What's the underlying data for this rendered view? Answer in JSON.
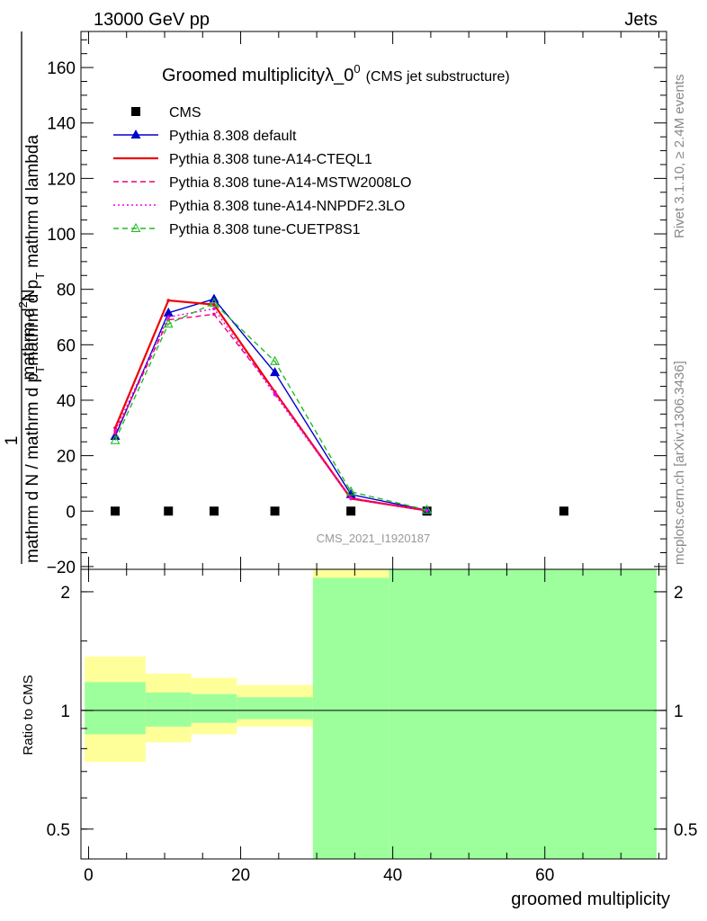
{
  "header": {
    "left": "13000 GeV pp",
    "right": "Jets",
    "side_upper": "Rivet 3.1.10, ≥ 2.4M events",
    "side_lower": "mcplots.cern.ch [arXiv:1306.3436]"
  },
  "chart_data": [
    {
      "type": "line",
      "title": "Groomed multiplicityλ_0",
      "title_sup": "0",
      "subtitle": "(CMS jet substructure)",
      "watermark": "CMS_2021_I1920187",
      "ylabel_numerator": "1",
      "ylabel_denominator_parts": [
        "mathrm d N / mathrm d p",
        "T",
        "mathrm d p",
        "T",
        "mathrm d lambda"
      ],
      "ylabel_numerator_parts": [
        "mathrm d",
        "2",
        "N"
      ],
      "xlim": [
        -1,
        76
      ],
      "ylim": [
        -21,
        173
      ],
      "yticks": [
        -20,
        0,
        20,
        40,
        60,
        80,
        100,
        120,
        140,
        160
      ],
      "xticks": [
        0,
        20,
        40,
        60
      ],
      "grid": false,
      "legend_position": "top-left",
      "series": [
        {
          "name": "CMS",
          "color": "#000000",
          "marker": "square",
          "line": "none",
          "x": [
            3.5,
            10.5,
            16.5,
            24.5,
            34.5,
            44.5,
            62.5
          ],
          "y": [
            0,
            0,
            0,
            0,
            0,
            0,
            0
          ]
        },
        {
          "name": "Pythia 8.308 default",
          "color": "#0000cc",
          "marker": "filled-triangle",
          "line": "solid",
          "x": [
            3.5,
            10.5,
            16.5,
            24.5,
            34.5,
            44.5
          ],
          "y": [
            27,
            71.5,
            76.5,
            50,
            6,
            0.3
          ]
        },
        {
          "name": "Pythia 8.308 tune-A14-CTEQL1",
          "color": "#ee0000",
          "marker": "dot",
          "line": "solid-thick",
          "x": [
            3.5,
            10.5,
            16.5,
            24.5,
            34.5,
            44.5
          ],
          "y": [
            30,
            76,
            74.5,
            43,
            4.5,
            0.2
          ]
        },
        {
          "name": "Pythia 8.308 tune-A14-MSTW2008LO",
          "color": "#ee0077",
          "marker": "dot",
          "line": "dashed",
          "x": [
            3.5,
            10.5,
            16.5,
            24.5,
            34.5,
            44.5
          ],
          "y": [
            28,
            69,
            71,
            43,
            4.8,
            0.2
          ]
        },
        {
          "name": "Pythia 8.308 tune-A14-NNPDF2.3LO",
          "color": "#ee00ee",
          "marker": "dot",
          "line": "dotted",
          "x": [
            3.5,
            10.5,
            16.5,
            24.5,
            34.5,
            44.5
          ],
          "y": [
            29,
            70,
            73,
            42,
            4.5,
            0.2
          ]
        },
        {
          "name": "Pythia 8.308 tune-CUETP8S1",
          "color": "#22bb22",
          "marker": "open-triangle",
          "line": "dashed",
          "x": [
            3.5,
            10.5,
            16.5,
            24.5,
            34.5,
            44.5
          ],
          "y": [
            25.5,
            67.5,
            75,
            54,
            7,
            0.4
          ]
        }
      ]
    },
    {
      "type": "area",
      "ylabel": "Ratio to CMS",
      "xlabel": "groomed multiplicity",
      "xlim": [
        -1,
        76
      ],
      "ylim": [
        0.42,
        2.28
      ],
      "yticks": [
        0.5,
        1,
        2
      ],
      "ytick_labels": [
        "0.5",
        "1",
        "2"
      ],
      "xticks": [
        0,
        20,
        40,
        60
      ],
      "reference_line": 1,
      "bins": [
        {
          "lo": -0.5,
          "hi": 7.5,
          "stat": [
            0.87,
            1.18
          ],
          "total": [
            0.74,
            1.37
          ]
        },
        {
          "lo": 7.5,
          "hi": 13.5,
          "stat": [
            0.91,
            1.11
          ],
          "total": [
            0.83,
            1.24
          ]
        },
        {
          "lo": 13.5,
          "hi": 19.5,
          "stat": [
            0.93,
            1.1
          ],
          "total": [
            0.87,
            1.21
          ]
        },
        {
          "lo": 19.5,
          "hi": 29.5,
          "stat": [
            0.95,
            1.08
          ],
          "total": [
            0.91,
            1.16
          ]
        },
        {
          "lo": 29.5,
          "hi": 39.5,
          "stat": [
            0.42,
            2.17
          ],
          "total": [
            0.42,
            2.28
          ]
        },
        {
          "lo": 39.5,
          "hi": 75.5,
          "stat": [
            0.42,
            2.28
          ],
          "total": [
            0.42,
            2.28
          ]
        }
      ],
      "band_colors": {
        "stat": "#9cff9c",
        "total": "#ffff99"
      }
    }
  ]
}
